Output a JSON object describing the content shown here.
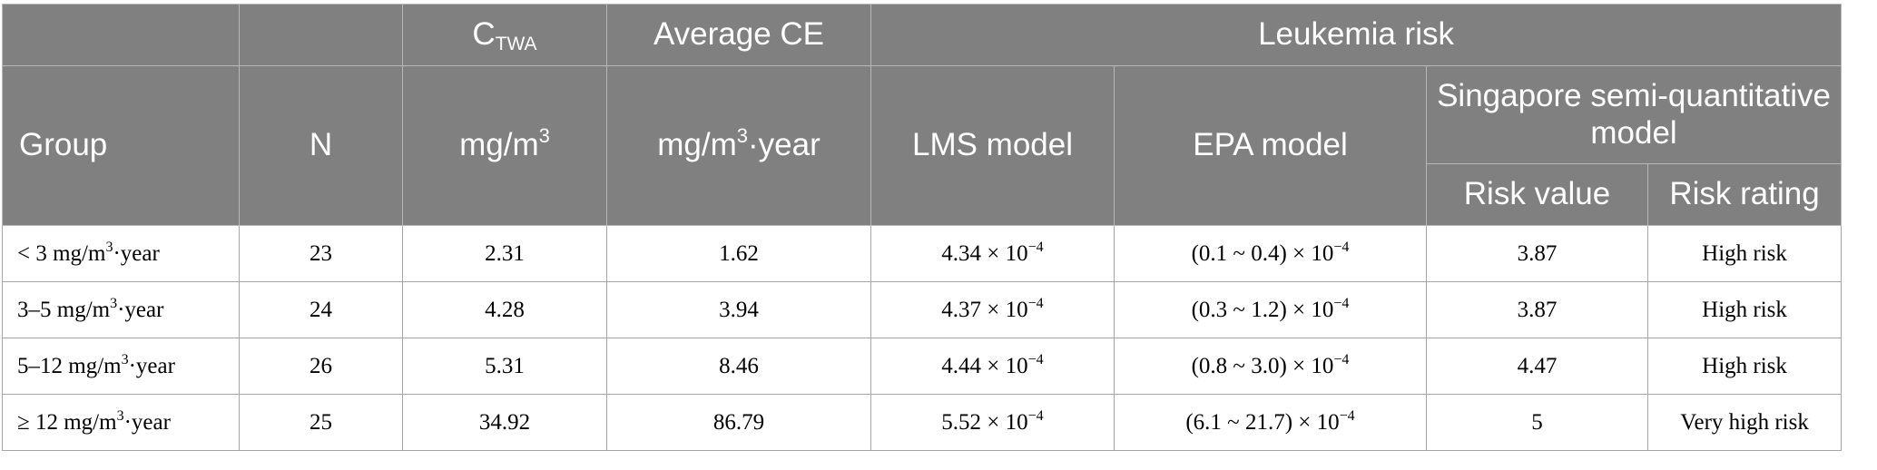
{
  "header": {
    "ctwa_main": "C",
    "ctwa_sub": "TWA",
    "average_ce": "Average CE",
    "leukemia_risk": "Leukemia risk",
    "group": "Group",
    "n": "N",
    "unit_ctwa_base": "mg/m",
    "unit_ctwa_exp": "3",
    "unit_ce_base": "mg/m",
    "unit_ce_exp": "3",
    "unit_ce_tail": "·year",
    "lms_model": "LMS model",
    "epa_model": "EPA model",
    "singapore_model": "Singapore semi-quantitative model",
    "risk_value": "Risk value",
    "risk_rating": "Risk rating"
  },
  "rows": [
    {
      "group_prefix": "< 3 mg/m",
      "group_exp": "3",
      "group_suffix": "·year",
      "n": "23",
      "ctwa": "2.31",
      "avg_ce": "1.62",
      "lms_base": "4.34 × 10",
      "lms_exp": "−4",
      "epa_base": "(0.1 ~ 0.4) × 10",
      "epa_exp": "−4",
      "risk_value": "3.87",
      "risk_rating": "High risk"
    },
    {
      "group_prefix": "3–5 mg/m",
      "group_exp": "3",
      "group_suffix": "·year",
      "n": "24",
      "ctwa": "4.28",
      "avg_ce": "3.94",
      "lms_base": "4.37 × 10",
      "lms_exp": "−4",
      "epa_base": "(0.3 ~ 1.2) × 10",
      "epa_exp": "−4",
      "risk_value": "3.87",
      "risk_rating": "High risk"
    },
    {
      "group_prefix": "5–12 mg/m",
      "group_exp": "3",
      "group_suffix": "·year",
      "n": "26",
      "ctwa": "5.31",
      "avg_ce": "8.46",
      "lms_base": "4.44 × 10",
      "lms_exp": "−4",
      "epa_base": "(0.8 ~ 3.0) × 10",
      "epa_exp": "−4",
      "risk_value": "4.47",
      "risk_rating": "High risk"
    },
    {
      "group_prefix": "≥ 12 mg/m",
      "group_exp": "3",
      "group_suffix": "·year",
      "n": "25",
      "ctwa": "34.92",
      "avg_ce": "86.79",
      "lms_base": "5.52 × 10",
      "lms_exp": "−4",
      "epa_base": "(6.1 ~ 21.7) × 10",
      "epa_exp": "−4",
      "risk_value": "5",
      "risk_rating": "Very high risk"
    }
  ]
}
